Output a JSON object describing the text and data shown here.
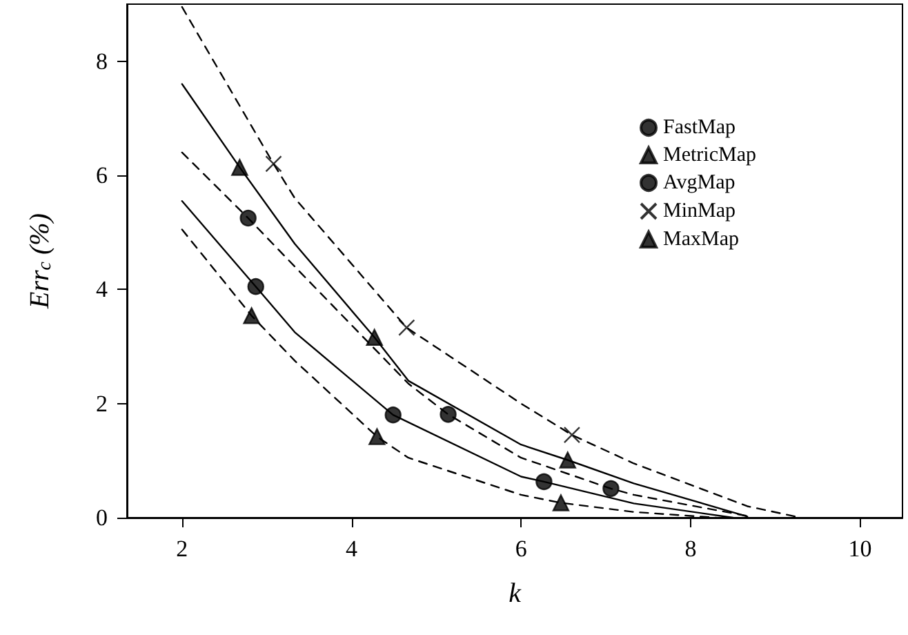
{
  "chart_data": {
    "type": "line",
    "xlabel": "k",
    "ylabel": "Err$_{c}$ (%)",
    "xlim": [
      1.35,
      10.5
    ],
    "xticks": [
      2,
      4,
      6,
      8,
      10
    ],
    "ylim": [
      0,
      9
    ],
    "yticks": [
      0,
      2,
      4,
      6,
      8
    ],
    "grid": false,
    "legend": "top right",
    "series": [
      {
        "color": "#000000",
        "line_style": "solid",
        "marker": "none",
        "x": [
          2,
          2.87,
          3.33,
          4.49,
          6,
          6.27,
          7.33,
          8.5
        ],
        "values": [
          5.55,
          4.05,
          3.25,
          1.8,
          0.72,
          0.63,
          0.25,
          0
        ]
      },
      {
        "color": "#000000",
        "line_style": "solid",
        "marker": "none",
        "x": [
          2,
          2.68,
          3.33,
          4.27,
          4.67,
          6,
          6.55,
          7.33,
          8.67
        ],
        "values": [
          7.6,
          6.14,
          4.8,
          3.16,
          2.4,
          1.28,
          1.01,
          0.6,
          0.02
        ]
      },
      {
        "color": "#000000",
        "line_style": "dashed",
        "marker": "none",
        "x": [
          2,
          2.78,
          3.33,
          4.67,
          5.14,
          6,
          7.06,
          7.33,
          8.67
        ],
        "values": [
          6.4,
          5.25,
          4.4,
          2.35,
          1.81,
          1.05,
          0.51,
          0.4,
          0.03
        ]
      },
      {
        "color": "#000000",
        "line_style": "dashed",
        "marker": "none",
        "x": [
          2,
          3.08,
          3.33,
          4.65,
          6,
          6.6,
          7.33,
          8.67,
          9.3
        ],
        "values": [
          8.95,
          6.2,
          5.6,
          3.33,
          2.0,
          1.45,
          0.95,
          0.2,
          0
        ]
      },
      {
        "color": "#000000",
        "line_style": "dashed",
        "marker": "none",
        "x": [
          2,
          2.82,
          3.33,
          4.3,
          4.67,
          6,
          6.47,
          7.33,
          8.3
        ],
        "values": [
          5.05,
          3.54,
          2.75,
          1.42,
          1.05,
          0.4,
          0.26,
          0.1,
          0
        ]
      },
      {
        "type": "scatter",
        "name": "FastMap",
        "color": "#000000",
        "marker": "circle",
        "x": [
          2.87,
          4.49,
          6.27
        ],
        "values": [
          4.05,
          1.8,
          0.63
        ]
      },
      {
        "type": "scatter",
        "name": "MetricMap",
        "color": "#000000",
        "marker": "triangle",
        "x": [
          2.68,
          4.27,
          6.55
        ],
        "values": [
          6.14,
          3.16,
          1.01
        ]
      },
      {
        "type": "scatter",
        "name": "AvgMap",
        "color": "#000000",
        "marker": "circle",
        "x": [
          2.78,
          5.14,
          7.06
        ],
        "values": [
          5.25,
          1.81,
          0.51
        ]
      },
      {
        "type": "scatter",
        "name": "MinMap",
        "color": "#000000",
        "marker": "cross",
        "x": [
          3.08,
          4.65,
          6.6
        ],
        "values": [
          6.2,
          3.33,
          1.45
        ]
      },
      {
        "type": "scatter",
        "name": "MaxMap",
        "color": "#000000",
        "marker": "triangle",
        "x": [
          2.82,
          4.3,
          6.47
        ],
        "values": [
          3.54,
          1.42,
          0.26
        ]
      }
    ]
  }
}
